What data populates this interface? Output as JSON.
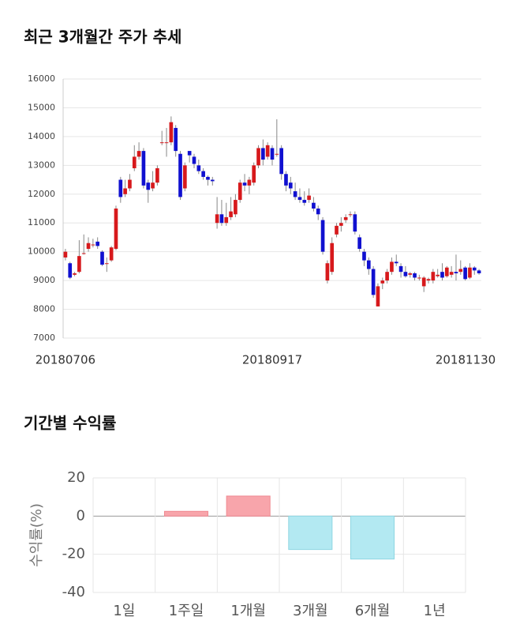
{
  "chart_data": [
    {
      "type": "candlestick",
      "title": "최근 3개월간 주가 추세",
      "categories": [
        "20180706",
        null,
        null,
        null,
        null,
        null,
        null,
        null,
        null,
        null,
        null,
        null,
        null,
        null,
        null,
        null,
        null,
        null,
        null,
        null,
        null,
        null,
        null,
        null,
        null,
        null,
        null,
        null,
        null,
        null,
        null,
        null,
        null,
        null,
        null,
        null,
        null,
        null,
        null,
        null,
        null,
        null,
        null,
        null,
        null,
        "20180917",
        null,
        null,
        null,
        null,
        null,
        null,
        null,
        null,
        null,
        null,
        null,
        null,
        null,
        null,
        null,
        null,
        null,
        null,
        null,
        null,
        null,
        null,
        null,
        null,
        null,
        null,
        null,
        null,
        null,
        null,
        null,
        null,
        null,
        null,
        null,
        null,
        null,
        null,
        null,
        null,
        null,
        null,
        null,
        null,
        "20181130"
      ],
      "open": [
        9800,
        9600,
        9200,
        9300,
        9950,
        10100,
        10250,
        10350,
        10000,
        9600,
        9700,
        10100,
        12500,
        12000,
        12200,
        12900,
        13300,
        13500,
        12400,
        12200,
        12400,
        13800,
        13800,
        13800,
        14300,
        13400,
        12200,
        13500,
        13300,
        13000,
        12800,
        12600,
        12500,
        11000,
        11300,
        11000,
        11200,
        11300,
        11800,
        12400,
        12300,
        12400,
        13000,
        13600,
        13300,
        13600,
        13400,
        13600,
        12700,
        12400,
        12100,
        11900,
        11800,
        11800,
        11700,
        11500,
        11100,
        9000,
        9300,
        10600,
        10900,
        11100,
        11300,
        11300,
        10500,
        10000,
        9700,
        9400,
        8100,
        8900,
        9000,
        9300,
        9650,
        9500,
        9300,
        9200,
        9250,
        9100,
        8800,
        9000,
        9000,
        9150,
        9300,
        9150,
        9200,
        9300,
        9300,
        9450,
        9100,
        9450,
        9350
      ],
      "high": [
        10100,
        9650,
        9300,
        10400,
        10600,
        10500,
        10450,
        10500,
        10050,
        9800,
        10200,
        11600,
        12600,
        12500,
        12700,
        13700,
        13800,
        13600,
        12500,
        12800,
        13000,
        14200,
        14300,
        14700,
        14400,
        13500,
        13100,
        13500,
        13400,
        13200,
        12900,
        12650,
        12600,
        11900,
        11800,
        11700,
        11900,
        12000,
        12500,
        12700,
        12600,
        13100,
        13700,
        13900,
        13800,
        13700,
        14600,
        13700,
        12800,
        12600,
        12400,
        12200,
        12100,
        12200,
        11900,
        11600,
        11200,
        9700,
        10500,
        11000,
        11200,
        11300,
        11400,
        11400,
        10600,
        10100,
        9800,
        9500,
        8900,
        9100,
        9400,
        9800,
        9900,
        9600,
        9500,
        9300,
        9300,
        9200,
        9150,
        9100,
        9400,
        9400,
        9600,
        9500,
        9500,
        9900,
        9700,
        9500,
        9600,
        9500,
        9400
      ],
      "low": [
        9700,
        9050,
        9150,
        9250,
        9900,
        10000,
        10150,
        10100,
        9500,
        9300,
        9650,
        10050,
        11700,
        11900,
        12100,
        12800,
        13200,
        12200,
        11700,
        12100,
        12300,
        13700,
        13300,
        13700,
        13300,
        11800,
        12100,
        13100,
        12900,
        12700,
        12500,
        12300,
        12300,
        10800,
        10900,
        10900,
        11100,
        11200,
        11700,
        12100,
        12000,
        12300,
        12900,
        13000,
        13200,
        13000,
        13300,
        12500,
        12100,
        12000,
        11800,
        11700,
        11600,
        11700,
        11400,
        11100,
        9900,
        8900,
        9200,
        10500,
        10700,
        11000,
        11200,
        10600,
        10000,
        9500,
        9200,
        8400,
        8100,
        8700,
        8900,
        9200,
        9500,
        9100,
        9100,
        9100,
        9000,
        9000,
        8600,
        8900,
        8900,
        9100,
        9000,
        9100,
        9100,
        9000,
        9200,
        9000,
        9050,
        9200,
        9200
      ],
      "close": [
        10000,
        9100,
        9250,
        9850,
        9950,
        10300,
        10250,
        10200,
        9550,
        9600,
        10150,
        11500,
        11900,
        12200,
        12500,
        13300,
        13500,
        12300,
        12150,
        12400,
        12900,
        13800,
        13800,
        14500,
        13500,
        11900,
        13000,
        13350,
        13050,
        12800,
        12600,
        12500,
        12450,
        11300,
        11000,
        11200,
        11400,
        11800,
        12400,
        12300,
        12500,
        13000,
        13600,
        13200,
        13700,
        13200,
        13400,
        12700,
        12300,
        12200,
        11900,
        11800,
        11700,
        11950,
        11500,
        11300,
        10000,
        9600,
        10300,
        10900,
        11000,
        11200,
        11300,
        10700,
        10100,
        9700,
        9400,
        8500,
        8800,
        9000,
        9300,
        9650,
        9600,
        9300,
        9150,
        9250,
        9100,
        9100,
        9100,
        9050,
        9300,
        9200,
        9100,
        9450,
        9300,
        9250,
        9400,
        9050,
        9450,
        9350,
        9250
      ],
      "up_color": "#d7191c",
      "down_color": "#1010d0",
      "ylim": [
        7000,
        16000
      ],
      "yticks": [
        7000,
        8000,
        9000,
        10000,
        11000,
        12000,
        13000,
        14000,
        15000,
        16000
      ],
      "grid": true
    },
    {
      "type": "bar",
      "title": "기간별 수익률",
      "ylabel": "수익률(%)",
      "categories": [
        "1일",
        "1주일",
        "1개월",
        "3개월",
        "6개월",
        "1년"
      ],
      "values": [
        null,
        2.5,
        10.5,
        -17.5,
        -22.5,
        null
      ],
      "positive_color": "#f8a5ab",
      "negative_color": "#b3e9f2",
      "ylim": [
        -40,
        20
      ],
      "yticks": [
        -40,
        -20,
        0,
        20
      ],
      "grid": true
    }
  ]
}
